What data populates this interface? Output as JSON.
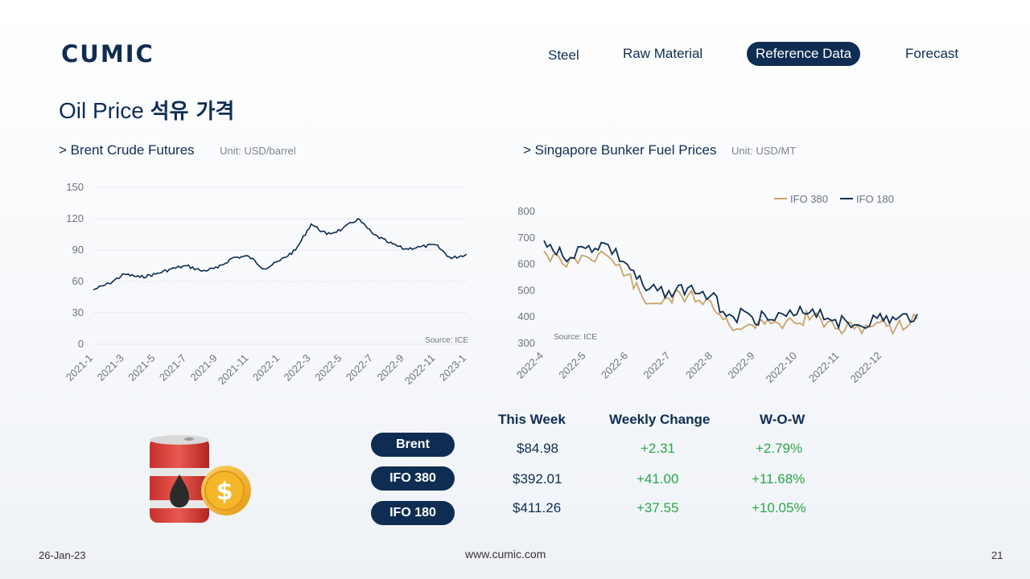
{
  "brand": {
    "logo_text": "CUMIC"
  },
  "nav": {
    "items": [
      {
        "label": "Steel"
      },
      {
        "label": "Raw Material"
      },
      {
        "label": "Reference Data",
        "active": true
      },
      {
        "label": "Forecast"
      }
    ]
  },
  "page": {
    "title_en": "Oil Price",
    "title_kr": "석유 가격"
  },
  "sections": {
    "brent": {
      "heading": "> Brent Crude Futures",
      "unit": "Unit: USD/barrel"
    },
    "bunker": {
      "heading": "> Singapore Bunker Fuel Prices",
      "unit": "Unit: USD/MT"
    }
  },
  "chart_data": [
    {
      "type": "line",
      "title": "> Brent Crude Futures",
      "ylabel": "Unit: USD/barrel",
      "ylim": [
        0,
        150
      ],
      "yticks": [
        0,
        30,
        60,
        90,
        120,
        150
      ],
      "grid": true,
      "source": "Source: ICE",
      "x_tick_labels": [
        "2021-1",
        "2021-3",
        "2021-5",
        "2021-7",
        "2021-9",
        "2021-11",
        "2022-1",
        "2022-3",
        "2022-5",
        "2022-7",
        "2022-9",
        "2022-11",
        "2023-1"
      ],
      "series": [
        {
          "color": "#0f2d52",
          "x": [
            "2021-01",
            "2021-02",
            "2021-03",
            "2021-04",
            "2021-05",
            "2021-06",
            "2021-07",
            "2021-08",
            "2021-09",
            "2021-10",
            "2021-11",
            "2021-12",
            "2022-01",
            "2022-02",
            "2022-03",
            "2022-04",
            "2022-05",
            "2022-06",
            "2022-07",
            "2022-08",
            "2022-09",
            "2022-10",
            "2022-11",
            "2022-12",
            "2023-01"
          ],
          "values": [
            52,
            58,
            67,
            64,
            67,
            72,
            75,
            70,
            73,
            83,
            84,
            72,
            80,
            90,
            115,
            105,
            110,
            120,
            105,
            97,
            91,
            93,
            95,
            82,
            86
          ]
        }
      ]
    },
    {
      "type": "line",
      "title": "> Singapore Bunker Fuel Prices",
      "ylabel": "Unit: USD/MT",
      "ylim": [
        300,
        800
      ],
      "yticks": [
        300,
        400,
        500,
        600,
        700,
        800
      ],
      "grid": false,
      "legend_position": "top-right",
      "source": "Source: ICE",
      "x_tick_labels": [
        "2022-4",
        "2022-5",
        "2022-6",
        "2022-7",
        "2022-8",
        "2022-9",
        "2022-10",
        "2022-11",
        "2022-12"
      ],
      "x": [
        "2022-04-01",
        "2022-04-15",
        "2022-05-01",
        "2022-05-15",
        "2022-06-01",
        "2022-06-15",
        "2022-07-01",
        "2022-07-15",
        "2022-08-01",
        "2022-08-15",
        "2022-09-01",
        "2022-09-15",
        "2022-10-01",
        "2022-10-15",
        "2022-11-01",
        "2022-11-15",
        "2022-12-01",
        "2022-12-15",
        "2022-12-31"
      ],
      "series": [
        {
          "name": "IFO 380",
          "color": "#c9a36a",
          "values": [
            650,
            600,
            630,
            640,
            560,
            450,
            470,
            480,
            460,
            370,
            370,
            375,
            380,
            405,
            355,
            355,
            380,
            360,
            392
          ]
        },
        {
          "name": "IFO 180",
          "color": "#0f2d52",
          "values": [
            690,
            630,
            660,
            680,
            600,
            500,
            500,
            510,
            480,
            410,
            400,
            390,
            405,
            430,
            390,
            370,
            395,
            390,
            411
          ]
        }
      ]
    }
  ],
  "table": {
    "headers": [
      "This Week",
      "Weekly Change",
      "W-O-W"
    ],
    "rows": [
      {
        "label": "Brent",
        "price": "$84.98",
        "change": "+2.31",
        "wow": "+2.79%"
      },
      {
        "label": "IFO 380",
        "price": "$392.01",
        "change": "+41.00",
        "wow": "+11.68%"
      },
      {
        "label": "IFO 180",
        "price": "$411.26",
        "change": "+37.55",
        "wow": "+10.05%"
      }
    ]
  },
  "colors": {
    "navy": "#0f2d52",
    "gold": "#c9a36a",
    "positive": "#2aa84a"
  },
  "footer": {
    "date": "26-Jan-23",
    "url": "www.cumic.com",
    "page": "21"
  }
}
